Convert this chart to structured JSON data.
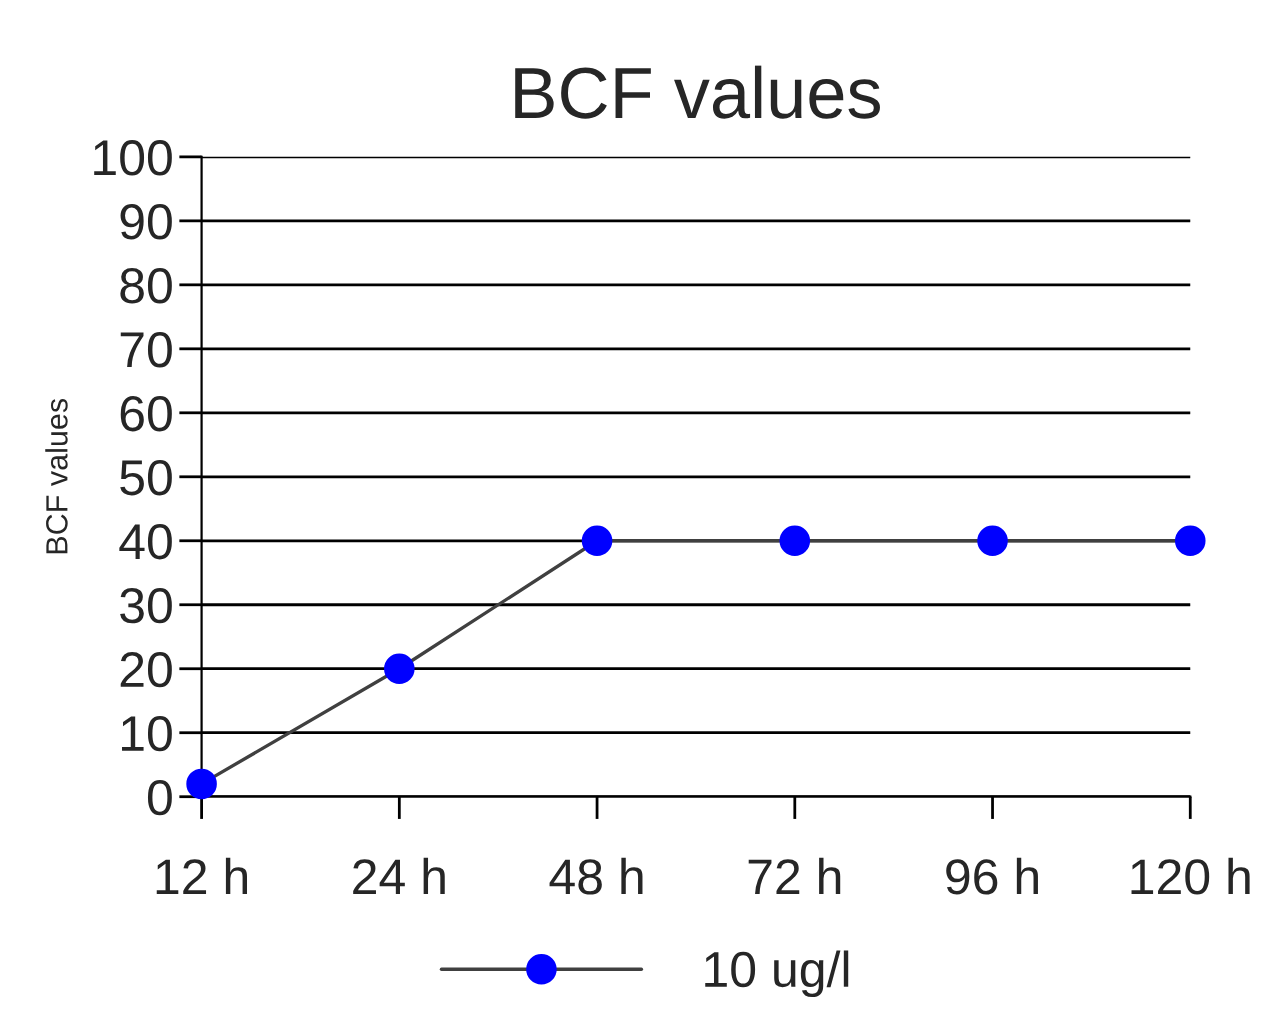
{
  "chart_data": {
    "type": "line",
    "title": "BCF values",
    "ylabel": "BCF values",
    "categories": [
      "12 h",
      "24 h",
      "48 h",
      "72 h",
      "96 h",
      "120 h"
    ],
    "series": [
      {
        "name": "10 ug/l",
        "color": "#0000ff",
        "values": [
          2,
          20,
          40,
          40,
          40,
          40
        ]
      }
    ],
    "ylim": [
      0,
      100
    ],
    "yticks": [
      0,
      10,
      20,
      30,
      40,
      50,
      60,
      70,
      80,
      90,
      100
    ],
    "grid": "y",
    "legend": "bottom",
    "marker": "circle",
    "line_style": "solid"
  }
}
